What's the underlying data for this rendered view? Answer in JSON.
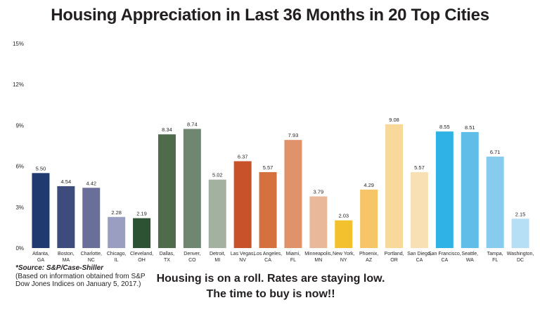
{
  "chart_data": {
    "type": "bar",
    "title": "Housing Appreciation in Last 36 Months in 20 Top Cities",
    "xlabel": "",
    "ylabel": "",
    "ylim": [
      0,
      15
    ],
    "y_ticks": [
      "0%",
      "3%",
      "6%",
      "9%",
      "12%",
      "15%"
    ],
    "y_tick_values": [
      0,
      3,
      6,
      9,
      12,
      15
    ],
    "grid": false,
    "categories": [
      [
        "Atlanta,",
        "GA"
      ],
      [
        "Boston,",
        "MA"
      ],
      [
        "Charlotte,",
        "NC"
      ],
      [
        "Chicago,",
        "IL"
      ],
      [
        "Cleveland,",
        "OH"
      ],
      [
        "Dallas,",
        "TX"
      ],
      [
        "Denver,",
        "CO"
      ],
      [
        "Detroit,",
        "MI"
      ],
      [
        "Las Vegas,",
        "NV"
      ],
      [
        "Los Angeles,",
        "CA"
      ],
      [
        "Miami,",
        "FL"
      ],
      [
        "Minneapolis,",
        "MN"
      ],
      [
        "New York,",
        "NY"
      ],
      [
        "Phoenix,",
        "AZ"
      ],
      [
        "Portland,",
        "OR"
      ],
      [
        "San Diego,",
        "CA"
      ],
      [
        "San Francisco,",
        "CA"
      ],
      [
        "Seattle,",
        "WA"
      ],
      [
        "Tampa,",
        "FL"
      ],
      [
        "Washington,",
        "DC"
      ]
    ],
    "values": [
      5.5,
      4.54,
      4.42,
      2.28,
      2.19,
      8.34,
      8.74,
      5.02,
      6.37,
      5.57,
      7.93,
      3.79,
      2.03,
      4.29,
      9.08,
      5.57,
      8.55,
      8.51,
      6.71,
      2.15
    ],
    "value_labels": [
      "5.50",
      "4.54",
      "4.42",
      "2.28",
      "2.19",
      "8.34",
      "8.74",
      "5.02",
      "6.37",
      "5.57",
      "7.93",
      "3.79",
      "2.03",
      "4.29",
      "9.08",
      "5.57",
      "8.55",
      "8.51",
      "6.71",
      "2.15"
    ],
    "colors": [
      "#1f3a6e",
      "#3d4b7d",
      "#6a6f9a",
      "#9a9ec0",
      "#2c5233",
      "#4f6b4c",
      "#6f8670",
      "#a3b1a1",
      "#c8532b",
      "#d5703f",
      "#e0926a",
      "#e9b89b",
      "#f3c12d",
      "#f5c568",
      "#f8d99a",
      "#f9e0b4",
      "#2fb2e6",
      "#5fbde8",
      "#87ccef",
      "#b6dff5"
    ]
  },
  "source": {
    "label": "*Source: S&P/Case-Shiller",
    "note": "(Based on information obtained from S&P Dow Jones Indices on January 5, 2017.)"
  },
  "tagline": {
    "line1": "Housing is on a roll. Rates are staying low.",
    "line2": "The time to buy is now!!"
  }
}
